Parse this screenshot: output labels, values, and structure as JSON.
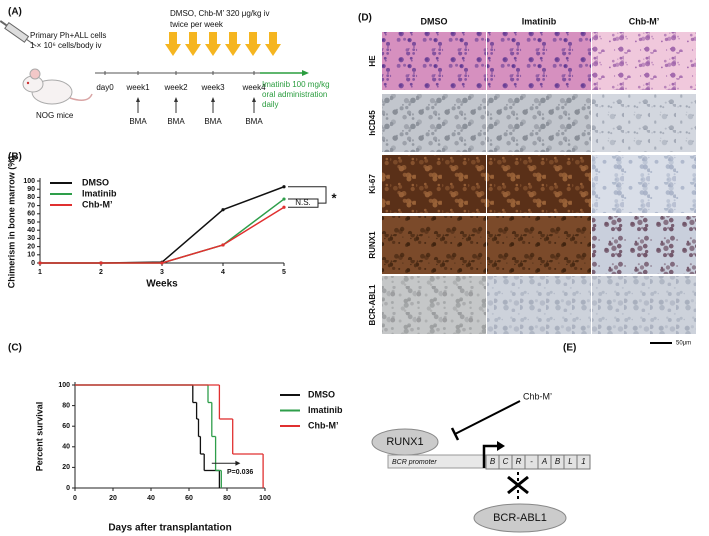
{
  "panel_a": {
    "label": "(A)",
    "cells": "Primary Ph+ALL cells",
    "dose": "1 × 10⁶ cells/body iv",
    "mice": "NOG mice",
    "treatment": [
      "DMSO, Chb-M’ 320 μg/kg iv",
      "twice per week"
    ],
    "timeline": [
      "day0",
      "week1",
      "week2",
      "week3",
      "week4"
    ],
    "bma": [
      "BMA",
      "BMA",
      "BMA",
      "BMA"
    ],
    "imatinib": [
      "Imatinib 100 mg/kg",
      "oral administration",
      "daily"
    ]
  },
  "chart_data": [
    {
      "type": "line",
      "panel_label": "(B)",
      "x_label": "Weeks",
      "y_label": "Chimerism in bone marrow (%)",
      "x": [
        1,
        2,
        3,
        4,
        5
      ],
      "xlim": [
        1,
        5
      ],
      "xticks": [
        1,
        2,
        3,
        4,
        5
      ],
      "ylim": [
        0,
        100
      ],
      "yticks": [
        0,
        10,
        20,
        30,
        40,
        50,
        60,
        70,
        80,
        90,
        100
      ],
      "series": [
        {
          "name": "DMSO",
          "color": "#111111",
          "values": [
            0,
            0,
            1,
            65,
            93
          ]
        },
        {
          "name": "Imatinib",
          "color": "#2e9e4a",
          "values": [
            0,
            0,
            0,
            22,
            78
          ]
        },
        {
          "name": "Chb-M’",
          "color": "#e03030",
          "values": [
            0,
            0,
            0,
            22,
            68
          ]
        }
      ],
      "annotations": [
        "N.S.",
        "*"
      ]
    },
    {
      "type": "step",
      "panel_label": "(C)",
      "x_label": "Days after transplantation",
      "y_label": "Percent survival",
      "xlim": [
        0,
        100
      ],
      "xticks": [
        0,
        20,
        40,
        60,
        80,
        100
      ],
      "ylim": [
        0,
        100
      ],
      "yticks": [
        0,
        20,
        40,
        60,
        80,
        100
      ],
      "series": [
        {
          "name": "DMSO",
          "color": "#111111",
          "x": [
            0,
            62,
            64,
            65,
            66,
            68,
            76
          ],
          "values": [
            100,
            83,
            67,
            50,
            33,
            17,
            0
          ]
        },
        {
          "name": "Imatinib",
          "color": "#2e9e4a",
          "x": [
            0,
            70,
            72,
            74,
            77
          ],
          "values": [
            100,
            83,
            50,
            17,
            0
          ]
        },
        {
          "name": "Chb-M’",
          "color": "#e03030",
          "x": [
            0,
            76,
            83,
            99
          ],
          "values": [
            100,
            67,
            33,
            0
          ]
        }
      ],
      "annotations": [
        "P=0.036"
      ]
    }
  ],
  "panel_d": {
    "label": "(D)",
    "columns": [
      "DMSO",
      "Imatinib",
      "Chb-M’"
    ],
    "rows": [
      "HE",
      "hCD45",
      "Ki-67",
      "RUNX1",
      "BCR-ABL1"
    ],
    "scale_bar": "50μm"
  },
  "panel_e": {
    "label": "(E)",
    "drug": "Chb-M’",
    "factor": "RUNX1",
    "promoter": "BCR promoter",
    "gene": [
      "B",
      "C",
      "R",
      "-",
      "A",
      "B",
      "L",
      "1"
    ],
    "product": "BCR-ABL1"
  }
}
